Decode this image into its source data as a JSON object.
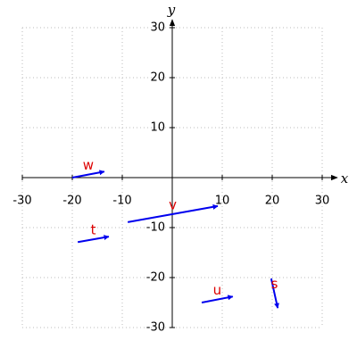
{
  "chart_data": {
    "type": "vector",
    "x_label": "x",
    "y_label": "y",
    "xlim": [
      -30,
      30
    ],
    "ylim": [
      -30,
      30
    ],
    "xticks": [
      -30,
      -20,
      -10,
      10,
      20,
      30
    ],
    "yticks": [
      -30,
      -20,
      -10,
      10,
      20,
      30
    ],
    "grid": true,
    "color": "#0000ee",
    "label_color": "#dd0000",
    "vectors": [
      {
        "name": "w",
        "x": [
          -20,
          -13.6
        ],
        "y": [
          0,
          1.2
        ]
      },
      {
        "name": "v",
        "x": [
          -8.9,
          9.1
        ],
        "y": [
          -8.9,
          -5.7
        ]
      },
      {
        "name": "t",
        "x": [
          -18.9,
          -12.7
        ],
        "y": [
          -12.9,
          -11.8
        ]
      },
      {
        "name": "u",
        "x": [
          5.9,
          12.1
        ],
        "y": [
          -25,
          -23.8
        ]
      },
      {
        "name": "s",
        "x": [
          19.8,
          21.1
        ],
        "y": [
          -20.2,
          -26.1
        ]
      }
    ]
  }
}
